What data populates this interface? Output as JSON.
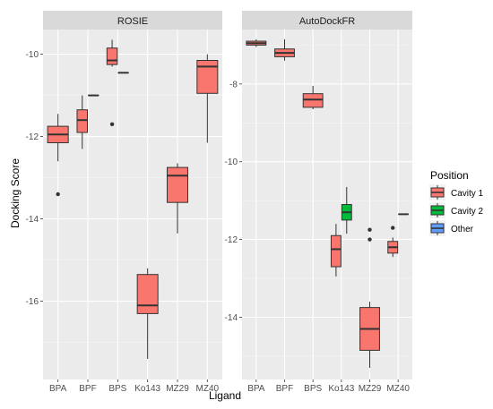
{
  "chart_data": {
    "type": "boxplot",
    "xlabel": "Ligand",
    "ylabel": "Docking Score",
    "categories": [
      "BPA",
      "BPF",
      "BPS",
      "Ko143",
      "MZ29",
      "MZ40"
    ],
    "legend": {
      "title": "Position",
      "placement": "right",
      "entries": [
        {
          "name": "Cavity 1",
          "color": "#F8766D"
        },
        {
          "name": "Cavity 2",
          "color": "#00BA38"
        },
        {
          "name": "Other",
          "color": "#619CFF"
        }
      ]
    },
    "grid": true,
    "panels": [
      {
        "title": "ROSIE",
        "ylim": [
          -17.9,
          -9.4
        ],
        "yticks": [
          -16,
          -14,
          -12,
          -10
        ],
        "boxes": [
          {
            "category": "BPA",
            "position": "Cavity 1",
            "whisker_low": -12.6,
            "q1": -12.15,
            "median": -11.95,
            "q3": -11.75,
            "whisker_high": -11.45,
            "outliers": [
              -13.4
            ]
          },
          {
            "category": "BPF",
            "position": "Cavity 1",
            "whisker_low": -12.3,
            "q1": -11.9,
            "median": -11.6,
            "q3": -11.35,
            "whisker_high": -11.0,
            "outliers": []
          },
          {
            "category": "BPF",
            "position": "Other",
            "whisker_low": -11.0,
            "q1": -11.0,
            "median": -11.0,
            "q3": -11.0,
            "whisker_high": -11.0,
            "outliers": []
          },
          {
            "category": "BPS",
            "position": "Cavity 1",
            "whisker_low": -10.3,
            "q1": -10.25,
            "median": -10.15,
            "q3": -9.85,
            "whisker_high": -9.65,
            "outliers": [
              -11.7
            ]
          },
          {
            "category": "BPS",
            "position": "Other",
            "whisker_low": -10.45,
            "q1": -10.45,
            "median": -10.45,
            "q3": -10.45,
            "whisker_high": -10.45,
            "outliers": []
          },
          {
            "category": "Ko143",
            "position": "Cavity 1",
            "whisker_low": -17.4,
            "q1": -16.3,
            "median": -16.1,
            "q3": -15.35,
            "whisker_high": -15.2,
            "outliers": []
          },
          {
            "category": "MZ29",
            "position": "Cavity 1",
            "whisker_low": -14.35,
            "q1": -13.6,
            "median": -12.95,
            "q3": -12.75,
            "whisker_high": -12.65,
            "outliers": []
          },
          {
            "category": "MZ40",
            "position": "Cavity 1",
            "whisker_low": -12.15,
            "q1": -10.95,
            "median": -10.3,
            "q3": -10.15,
            "whisker_high": -10.0,
            "outliers": []
          }
        ]
      },
      {
        "title": "AutoDockFR",
        "ylim": [
          -15.6,
          -6.6
        ],
        "yticks": [
          -14,
          -12,
          -10,
          -8
        ],
        "boxes": [
          {
            "category": "BPA",
            "position": "Cavity 1",
            "whisker_low": -7.05,
            "q1": -7.0,
            "median": -6.95,
            "q3": -6.9,
            "whisker_high": -6.85,
            "outliers": []
          },
          {
            "category": "BPF",
            "position": "Cavity 1",
            "whisker_low": -7.4,
            "q1": -7.3,
            "median": -7.2,
            "q3": -7.1,
            "whisker_high": -6.85,
            "outliers": []
          },
          {
            "category": "BPS",
            "position": "Cavity 1",
            "whisker_low": -8.65,
            "q1": -8.6,
            "median": -8.4,
            "q3": -8.25,
            "whisker_high": -8.05,
            "outliers": []
          },
          {
            "category": "Ko143",
            "position": "Cavity 1",
            "whisker_low": -12.95,
            "q1": -12.7,
            "median": -12.25,
            "q3": -11.9,
            "whisker_high": -11.6,
            "outliers": []
          },
          {
            "category": "Ko143",
            "position": "Cavity 2",
            "whisker_low": -11.85,
            "q1": -11.5,
            "median": -11.3,
            "q3": -11.1,
            "whisker_high": -10.65,
            "outliers": []
          },
          {
            "category": "MZ29",
            "position": "Cavity 1",
            "whisker_low": -15.3,
            "q1": -14.85,
            "median": -14.3,
            "q3": -13.75,
            "whisker_high": -13.6,
            "outliers": [
              -11.75,
              -12.0
            ]
          },
          {
            "category": "MZ40",
            "position": "Cavity 1",
            "whisker_low": -12.45,
            "q1": -12.35,
            "median": -12.2,
            "q3": -12.05,
            "whisker_high": -11.95,
            "outliers": [
              -11.7
            ]
          },
          {
            "category": "MZ40",
            "position": "Other",
            "whisker_low": -11.35,
            "q1": -11.35,
            "median": -11.35,
            "q3": -11.35,
            "whisker_high": -11.35,
            "outliers": []
          }
        ]
      }
    ]
  }
}
